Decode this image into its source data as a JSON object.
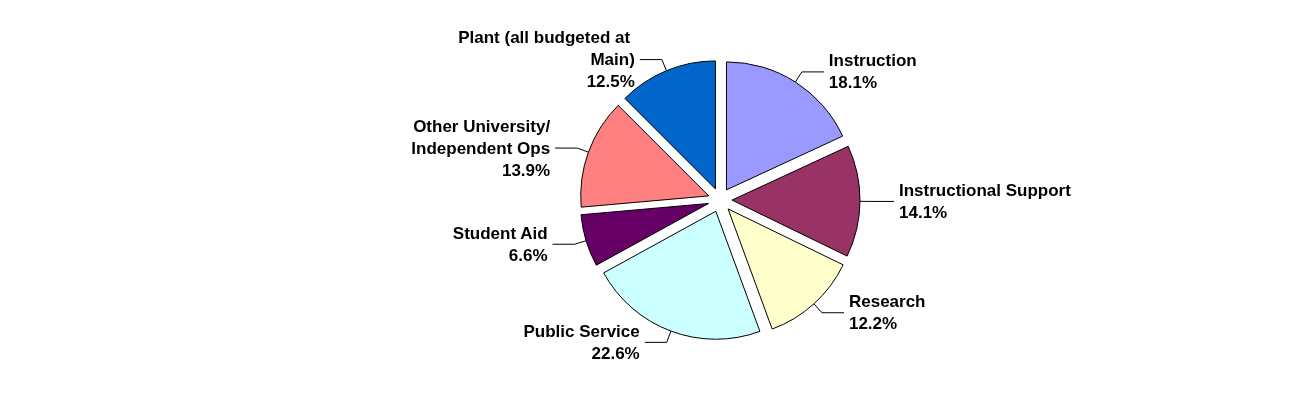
{
  "chart_data": {
    "type": "pie",
    "categories": [
      "Instruction",
      "Instructional Support",
      "Research",
      "Public Service",
      "Student Aid",
      "Other University/Independent Ops",
      "Plant (all budgeted at Main)"
    ],
    "values": [
      18.1,
      14.1,
      12.2,
      22.6,
      6.6,
      13.9,
      12.5
    ],
    "colors": [
      "#9999ff",
      "#993366",
      "#ffffcc",
      "#ccffff",
      "#660066",
      "#ff8080",
      "#0066cc"
    ],
    "value_labels": [
      "18.1%",
      "14.1%",
      "12.2%",
      "22.6%",
      "6.6%",
      "13.9%",
      "12.5%"
    ]
  }
}
